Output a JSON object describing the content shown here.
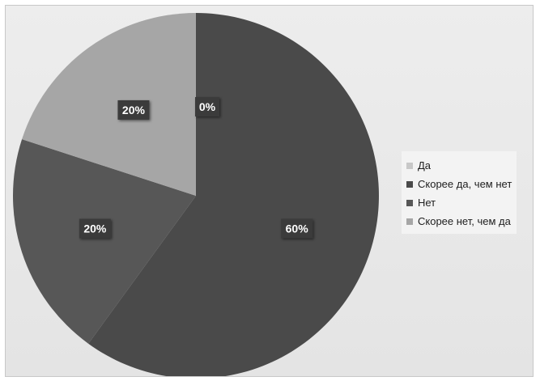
{
  "chart_data": {
    "type": "pie",
    "categories": [
      "Да",
      "Скорее да, чем нет",
      "Нет",
      "Скорее нет, чем да"
    ],
    "values": [
      0,
      60,
      20,
      20
    ],
    "data_labels": [
      "0%",
      "60%",
      "20%",
      "20%"
    ],
    "colors": [
      "#c8c8c8",
      "#4a4a4a",
      "#575757",
      "#a6a6a6"
    ],
    "legend_position": "right",
    "title": ""
  }
}
